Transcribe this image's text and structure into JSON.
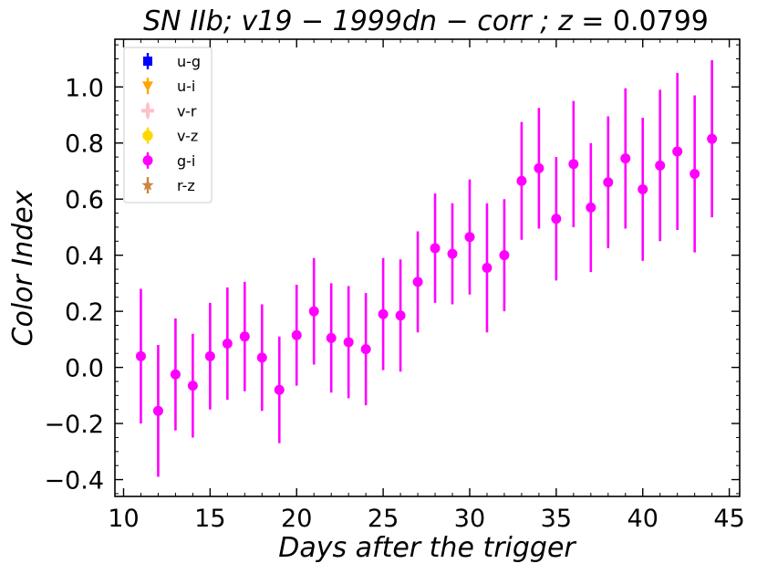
{
  "chart_data": {
    "type": "scatter",
    "title": "SN IIb; v19 − 1999dn − corr ; z  =  0.0799",
    "title_parts": {
      "italic": "SN IIb; v19 − 1999dn − corr ; z",
      "normal": " =  0.0799"
    },
    "xlabel": "Days after the trigger",
    "ylabel": "Color Index",
    "xlim": [
      9.5,
      45.6
    ],
    "ylim": [
      -0.46,
      1.17
    ],
    "xticks": [
      10,
      15,
      20,
      25,
      30,
      35,
      40,
      45
    ],
    "xtick_labels": [
      "10",
      "15",
      "20",
      "25",
      "30",
      "35",
      "40",
      "45"
    ],
    "yticks": [
      -0.4,
      -0.2,
      0.0,
      0.2,
      0.4,
      0.6,
      0.8,
      1.0
    ],
    "ytick_labels": [
      "−0.4",
      "−0.2",
      "0.0",
      "0.2",
      "0.4",
      "0.6",
      "0.8",
      "1.0"
    ],
    "legend_position": "top-left",
    "legend": [
      {
        "name": "u-g",
        "color": "#0000ff",
        "marker": "square"
      },
      {
        "name": "u-i",
        "color": "#ffa500",
        "marker": "triangle-down"
      },
      {
        "name": "v-r",
        "color": "#ffc0cb",
        "marker": "plus"
      },
      {
        "name": "v-z",
        "color": "#ffd700",
        "marker": "octagon"
      },
      {
        "name": "g-i",
        "color": "#ff00ff",
        "marker": "circle"
      },
      {
        "name": "r-z",
        "color": "#cd853f",
        "marker": "star"
      }
    ],
    "series": [
      {
        "name": "u-g",
        "x": [],
        "y": [],
        "yerr": []
      },
      {
        "name": "u-i",
        "x": [],
        "y": [],
        "yerr": []
      },
      {
        "name": "v-r",
        "x": [],
        "y": [],
        "yerr": []
      },
      {
        "name": "v-z",
        "x": [],
        "y": [],
        "yerr": []
      },
      {
        "name": "g-i",
        "color": "#ff00ff",
        "x": [
          11,
          12,
          13,
          14,
          15,
          16,
          17,
          18,
          19,
          20,
          21,
          22,
          23,
          24,
          25,
          26,
          27,
          28,
          29,
          30,
          31,
          32,
          33,
          34,
          35,
          36,
          37,
          38,
          39,
          40,
          41,
          42,
          43,
          44
        ],
        "y": [
          0.04,
          -0.155,
          -0.025,
          -0.065,
          0.04,
          0.085,
          0.11,
          0.035,
          -0.08,
          0.115,
          0.2,
          0.105,
          0.09,
          0.065,
          0.19,
          0.185,
          0.305,
          0.425,
          0.405,
          0.465,
          0.355,
          0.4,
          0.665,
          0.71,
          0.53,
          0.725,
          0.57,
          0.66,
          0.745,
          0.635,
          0.72,
          0.77,
          0.69,
          0.815
        ],
        "yerr": [
          0.24,
          0.235,
          0.2,
          0.185,
          0.19,
          0.2,
          0.195,
          0.19,
          0.19,
          0.18,
          0.19,
          0.195,
          0.2,
          0.2,
          0.2,
          0.2,
          0.18,
          0.195,
          0.18,
          0.205,
          0.23,
          0.2,
          0.21,
          0.215,
          0.22,
          0.225,
          0.23,
          0.235,
          0.25,
          0.255,
          0.27,
          0.28,
          0.28,
          0.28
        ]
      },
      {
        "name": "r-z",
        "x": [],
        "y": [],
        "yerr": []
      }
    ]
  }
}
